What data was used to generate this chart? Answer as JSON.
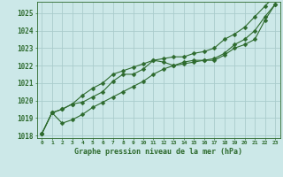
{
  "xlabel": "Graphe pression niveau de la mer (hPa)",
  "bg_color": "#cce8e8",
  "grid_color": "#aacccc",
  "line_color": "#2d6a2d",
  "hours": [
    0,
    1,
    2,
    3,
    4,
    5,
    6,
    7,
    8,
    9,
    10,
    11,
    12,
    13,
    14,
    15,
    16,
    17,
    18,
    19,
    20,
    21,
    22,
    23
  ],
  "pressure_line1": [
    1018.1,
    1019.3,
    1018.7,
    1018.9,
    1019.2,
    1019.6,
    1019.9,
    1020.2,
    1020.5,
    1020.8,
    1021.1,
    1021.5,
    1021.8,
    1022.0,
    1022.1,
    1022.2,
    1022.3,
    1022.3,
    1022.6,
    1023.0,
    1023.2,
    1023.5,
    1024.6,
    1025.5
  ],
  "pressure_line2": [
    1018.1,
    1019.3,
    1019.5,
    1019.8,
    1019.9,
    1020.2,
    1020.5,
    1021.1,
    1021.5,
    1021.5,
    1021.8,
    1022.3,
    1022.2,
    1022.0,
    1022.2,
    1022.3,
    1022.3,
    1022.4,
    1022.7,
    1023.2,
    1023.5,
    1024.0,
    1024.8,
    1025.5
  ],
  "pressure_line3": [
    1018.1,
    1019.3,
    1019.5,
    1019.8,
    1020.3,
    1020.7,
    1021.0,
    1021.5,
    1021.7,
    1021.9,
    1022.1,
    1022.3,
    1022.4,
    1022.5,
    1022.5,
    1022.7,
    1022.8,
    1023.0,
    1023.5,
    1023.8,
    1024.2,
    1024.8,
    1025.4,
    1026.0
  ],
  "ylim_min": 1018,
  "ylim_max": 1025.5,
  "ytick_min": 1018,
  "ytick_max": 1025,
  "ytick_step": 1,
  "marker_size": 2.5,
  "line_width": 0.8
}
